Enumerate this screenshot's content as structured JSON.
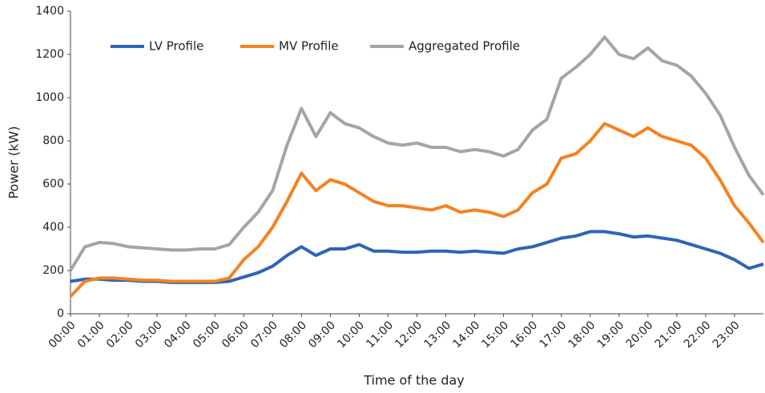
{
  "chart_data": {
    "type": "line",
    "x_label": "Time of the day",
    "y_label": "Power (kW)",
    "categories": [
      "00:00",
      null,
      "01:00",
      null,
      "02:00",
      null,
      "03:00",
      null,
      "04:00",
      null,
      "05:00",
      null,
      "06:00",
      null,
      "07:00",
      null,
      "08:00",
      null,
      "09:00",
      null,
      "10:00",
      null,
      "11:00",
      null,
      "12:00",
      null,
      "13:00",
      null,
      "14:00",
      null,
      "15:00",
      null,
      "16:00",
      null,
      "17:00",
      null,
      "18:00",
      null,
      "19:00",
      null,
      "20:00",
      null,
      "21:00",
      null,
      "22:00",
      null,
      "23:00",
      null,
      null
    ],
    "series": [
      {
        "name": "LV Profile",
        "color": "#2e64b8",
        "values": [
          150,
          160,
          160,
          155,
          155,
          150,
          150,
          145,
          145,
          145,
          145,
          150,
          170,
          190,
          220,
          270,
          310,
          270,
          300,
          300,
          320,
          290,
          290,
          285,
          285,
          290,
          290,
          285,
          290,
          285,
          280,
          300,
          310,
          330,
          350,
          360,
          380,
          380,
          370,
          355,
          360,
          350,
          340,
          320,
          300,
          280,
          250,
          210,
          230
        ]
      },
      {
        "name": "MV Profile",
        "color": "#f5821f",
        "values": [
          80,
          150,
          165,
          165,
          160,
          155,
          155,
          150,
          150,
          150,
          150,
          165,
          250,
          310,
          400,
          520,
          650,
          570,
          620,
          600,
          560,
          520,
          500,
          500,
          490,
          480,
          500,
          470,
          480,
          470,
          450,
          480,
          560,
          600,
          720,
          740,
          800,
          880,
          850,
          820,
          860,
          820,
          800,
          780,
          720,
          620,
          500,
          420,
          330
        ]
      },
      {
        "name": "Aggregated Profile",
        "color": "#a5a5a5",
        "values": [
          200,
          310,
          330,
          325,
          310,
          305,
          300,
          295,
          295,
          300,
          300,
          320,
          400,
          470,
          570,
          780,
          950,
          820,
          930,
          880,
          860,
          820,
          790,
          780,
          790,
          770,
          770,
          750,
          760,
          750,
          730,
          760,
          850,
          900,
          1090,
          1140,
          1200,
          1280,
          1200,
          1180,
          1230,
          1170,
          1150,
          1100,
          1020,
          920,
          770,
          640,
          550
        ]
      }
    ],
    "ylim": [
      0,
      1400
    ],
    "yticks": [
      0,
      200,
      400,
      600,
      800,
      1000,
      1200,
      1400
    ],
    "legend": "top-left",
    "grid": false
  }
}
